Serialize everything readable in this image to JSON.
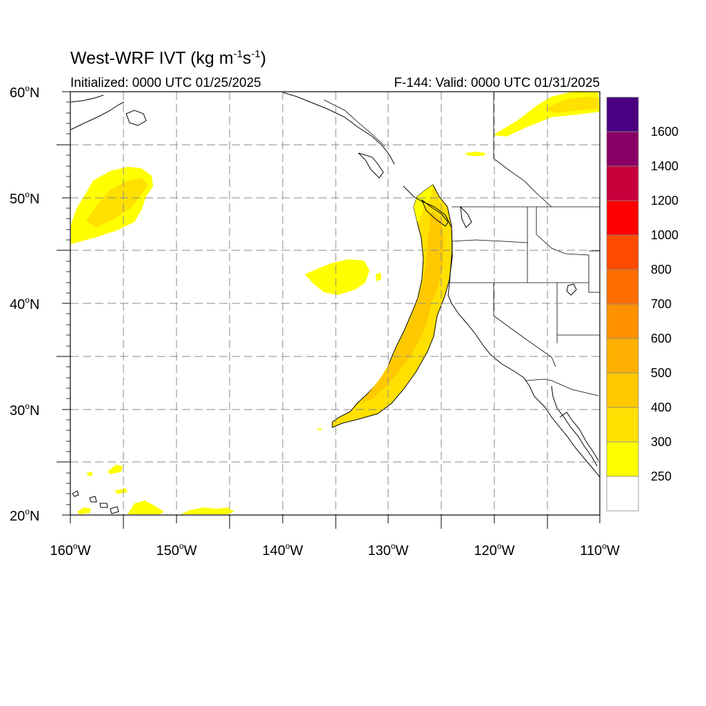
{
  "header": {
    "title_main": "West-WRF IVT (kg m",
    "title_exp1": "-1",
    "title_mid": "s",
    "title_exp2": "-1",
    "title_end": ")",
    "initialized": "Initialized: 0000 UTC 01/25/2025",
    "valid": "F-144: Valid: 0000 UTC 01/31/2025"
  },
  "axes": {
    "lat_labels": [
      {
        "deg": "60",
        "hemi": "N"
      },
      {
        "deg": "50",
        "hemi": "N"
      },
      {
        "deg": "40",
        "hemi": "N"
      },
      {
        "deg": "30",
        "hemi": "N"
      },
      {
        "deg": "20",
        "hemi": "N"
      }
    ],
    "lon_labels": [
      {
        "deg": "160",
        "hemi": "W"
      },
      {
        "deg": "150",
        "hemi": "W"
      },
      {
        "deg": "140",
        "hemi": "W"
      },
      {
        "deg": "130",
        "hemi": "W"
      },
      {
        "deg": "120",
        "hemi": "W"
      },
      {
        "deg": "110",
        "hemi": "W"
      }
    ],
    "lat_range": [
      20,
      60
    ],
    "lon_range": [
      -160,
      -110
    ],
    "grid_interval_deg": 5
  },
  "colorbar": {
    "labels": [
      "1600",
      "1400",
      "1200",
      "1000",
      "800",
      "700",
      "600",
      "500",
      "400",
      "300",
      "250"
    ],
    "colors": [
      "#4b0082",
      "#8b0066",
      "#c8003c",
      "#ff0000",
      "#ff4a00",
      "#ff6e00",
      "#ff9000",
      "#ffb000",
      "#ffc800",
      "#ffe000",
      "#ffff00",
      "#ffffff"
    ]
  }
}
